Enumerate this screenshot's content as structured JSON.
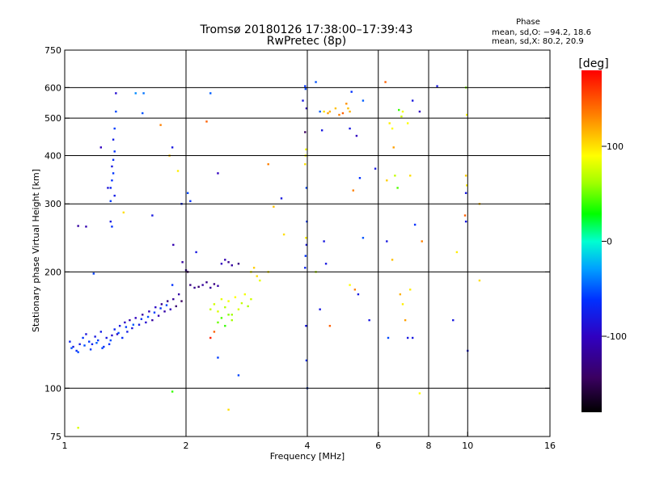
{
  "chart_data": {
    "type": "scatter",
    "title": "Tromsø 20180126 17:38:00–17:39:43",
    "subtitle": "RwPretec (8p)",
    "xlabel": "Frequency [MHz]",
    "ylabel": "Stationary phase Virtual Height [km]",
    "x_scale": "log",
    "y_scale": "log",
    "xlim": [
      1,
      16
    ],
    "ylim": [
      75,
      750
    ],
    "x_ticks": [
      1,
      2,
      4,
      6,
      8,
      10,
      16
    ],
    "y_ticks": [
      75,
      100,
      200,
      300,
      400,
      500,
      600,
      750
    ],
    "grid_x": [
      2,
      4,
      6,
      8,
      10
    ],
    "grid_y": [
      100,
      200,
      300,
      400,
      500,
      600
    ],
    "colorbar": {
      "label": "[deg]",
      "range": [
        -180,
        180
      ],
      "ticks": [
        100,
        0,
        -100
      ],
      "colormap": "rainbow (black → purple → blue → cyan → green → yellow → red)"
    },
    "phase_stats": {
      "heading": "Phase",
      "line1": "mean, sd,O: −94.2, 18.6",
      "line2": "mean, sd,X:  80.2, 20.9"
    },
    "series": [
      {
        "points": [
          [
            1.03,
            132,
            -105
          ],
          [
            1.05,
            128,
            -110
          ],
          [
            1.07,
            125,
            -102
          ],
          [
            1.09,
            130,
            -108
          ],
          [
            1.11,
            135,
            -100
          ],
          [
            1.13,
            138,
            -112
          ],
          [
            1.15,
            132,
            -98
          ],
          [
            1.17,
            130,
            -105
          ],
          [
            1.19,
            136,
            -110
          ],
          [
            1.21,
            133,
            -95
          ],
          [
            1.23,
            140,
            -108
          ],
          [
            1.25,
            128,
            -102
          ],
          [
            1.27,
            135,
            -110
          ],
          [
            1.29,
            130,
            -100
          ],
          [
            1.31,
            137,
            -115
          ],
          [
            1.33,
            142,
            -105
          ],
          [
            1.35,
            138,
            -120
          ],
          [
            1.37,
            145,
            -110
          ],
          [
            1.39,
            135,
            -102
          ],
          [
            1.41,
            148,
            -118
          ],
          [
            1.43,
            140,
            -108
          ],
          [
            1.45,
            150,
            -125
          ],
          [
            1.47,
            143,
            -112
          ],
          [
            1.5,
            152,
            -120
          ],
          [
            1.53,
            146,
            -110
          ],
          [
            1.56,
            155,
            -128
          ],
          [
            1.59,
            148,
            -115
          ],
          [
            1.62,
            158,
            -122
          ],
          [
            1.65,
            150,
            -130
          ],
          [
            1.68,
            162,
            -118
          ],
          [
            1.71,
            154,
            -125
          ],
          [
            1.74,
            165,
            -135
          ],
          [
            1.77,
            158,
            -128
          ],
          [
            1.8,
            168,
            -140
          ],
          [
            1.83,
            160,
            -120
          ],
          [
            1.86,
            170,
            -132
          ],
          [
            1.89,
            163,
            -145
          ],
          [
            1.92,
            175,
            -128
          ],
          [
            1.95,
            168,
            -150
          ],
          [
            1.04,
            127,
            -85
          ],
          [
            1.08,
            124,
            -90
          ],
          [
            1.12,
            129,
            -88
          ],
          [
            1.16,
            126,
            -95
          ],
          [
            1.2,
            131,
            -80
          ],
          [
            1.24,
            127,
            -92
          ],
          [
            1.3,
            133,
            -86
          ],
          [
            1.36,
            139,
            -90
          ],
          [
            1.42,
            144,
            -94
          ],
          [
            1.48,
            146,
            -82
          ],
          [
            1.55,
            151,
            -98
          ],
          [
            1.61,
            153,
            -88
          ],
          [
            1.67,
            157,
            -95
          ],
          [
            1.73,
            161,
            -100
          ],
          [
            1.79,
            164,
            -92
          ],
          [
            1.3,
            330,
            -105
          ],
          [
            1.31,
            345,
            -100
          ],
          [
            1.32,
            360,
            -98
          ],
          [
            1.31,
            375,
            -110
          ],
          [
            1.32,
            390,
            -102
          ],
          [
            1.33,
            410,
            -100
          ],
          [
            1.32,
            440,
            -108
          ],
          [
            1.33,
            470,
            -95
          ],
          [
            1.34,
            520,
            -90
          ],
          [
            1.34,
            580,
            -115
          ],
          [
            1.3,
            270,
            -110
          ],
          [
            1.31,
            262,
            -100
          ],
          [
            1.33,
            315,
            -108
          ],
          [
            1.28,
            330,
            -112
          ],
          [
            1.3,
            305,
            -95
          ],
          [
            1.23,
            420,
            -120
          ],
          [
            1.13,
            262,
            -125
          ],
          [
            1.5,
            580,
            -60
          ],
          [
            1.57,
            580,
            -70
          ],
          [
            1.56,
            515,
            -85
          ],
          [
            1.65,
            280,
            -110
          ],
          [
            1.73,
            480,
            140
          ],
          [
            1.82,
            400,
            120
          ],
          [
            1.91,
            365,
            105
          ],
          [
            1.85,
            420,
            -110
          ],
          [
            1.95,
            300,
            -105
          ],
          [
            2.02,
            320,
            -90
          ],
          [
            2.05,
            305,
            -100
          ],
          [
            2.4,
            360,
            -120
          ],
          [
            2.3,
            580,
            -80
          ],
          [
            2.25,
            490,
            150
          ],
          [
            1.86,
            235,
            -125
          ],
          [
            1.96,
            212,
            -130
          ],
          [
            2.02,
            200,
            -150
          ],
          [
            2.12,
            225,
            -110
          ],
          [
            2.05,
            185,
            -140
          ],
          [
            2.1,
            182,
            -135
          ],
          [
            2.15,
            183,
            -145
          ],
          [
            2.2,
            185,
            -130
          ],
          [
            2.25,
            188,
            -138
          ],
          [
            2.3,
            182,
            -132
          ],
          [
            2.35,
            186,
            -140
          ],
          [
            2.4,
            184,
            -128
          ],
          [
            2.45,
            210,
            -120
          ],
          [
            2.5,
            215,
            -125
          ],
          [
            2.55,
            212,
            -135
          ],
          [
            2.6,
            208,
            -130
          ],
          [
            2.7,
            210,
            -140
          ],
          [
            2.3,
            160,
            75
          ],
          [
            2.35,
            165,
            80
          ],
          [
            2.4,
            158,
            85
          ],
          [
            2.45,
            170,
            90
          ],
          [
            2.5,
            162,
            70
          ],
          [
            2.55,
            168,
            95
          ],
          [
            2.6,
            155,
            60
          ],
          [
            2.65,
            172,
            100
          ],
          [
            2.7,
            160,
            85
          ],
          [
            2.75,
            166,
            75
          ],
          [
            2.8,
            175,
            95
          ],
          [
            2.85,
            163,
            65
          ],
          [
            2.9,
            170,
            80
          ],
          [
            2.4,
            148,
            50
          ],
          [
            2.45,
            152,
            45
          ],
          [
            2.5,
            145,
            40
          ],
          [
            2.55,
            155,
            55
          ],
          [
            2.35,
            140,
            150
          ],
          [
            2.3,
            135,
            170
          ],
          [
            2.6,
            150,
            62
          ],
          [
            2.9,
            200,
            100
          ],
          [
            3.0,
            195,
            110
          ],
          [
            3.05,
            190,
            90
          ],
          [
            3.2,
            200,
            105
          ],
          [
            2.95,
            205,
            115
          ],
          [
            2.4,
            120,
            -95
          ],
          [
            2.7,
            108,
            -90
          ],
          [
            1.85,
            98,
            40
          ],
          [
            1.08,
            79,
            85
          ],
          [
            2.55,
            88,
            110
          ],
          [
            3.2,
            380,
            140
          ],
          [
            3.45,
            310,
            -110
          ],
          [
            3.5,
            250,
            110
          ],
          [
            3.3,
            295,
            120
          ],
          [
            3.95,
            605,
            -100
          ],
          [
            3.96,
            595,
            -90
          ],
          [
            3.9,
            555,
            -110
          ],
          [
            3.98,
            530,
            -120
          ],
          [
            3.95,
            460,
            -150
          ],
          [
            3.97,
            415,
            95
          ],
          [
            3.96,
            400,
            100
          ],
          [
            3.95,
            380,
            110
          ],
          [
            3.98,
            330,
            -90
          ],
          [
            3.99,
            270,
            -100
          ],
          [
            3.97,
            245,
            105
          ],
          [
            3.98,
            235,
            -110
          ],
          [
            3.96,
            220,
            -100
          ],
          [
            3.95,
            205,
            -105
          ],
          [
            3.97,
            145,
            -110
          ],
          [
            3.98,
            118,
            -100
          ],
          [
            4.0,
            100,
            -95
          ],
          [
            4.2,
            620,
            -85
          ],
          [
            4.3,
            520,
            -80
          ],
          [
            4.35,
            465,
            -110
          ],
          [
            4.4,
            520,
            110
          ],
          [
            4.5,
            515,
            130
          ],
          [
            4.55,
            520,
            125
          ],
          [
            4.7,
            530,
            120
          ],
          [
            4.8,
            510,
            140
          ],
          [
            4.9,
            515,
            150
          ],
          [
            5.0,
            545,
            135
          ],
          [
            5.05,
            530,
            120
          ],
          [
            5.1,
            520,
            125
          ],
          [
            5.15,
            585,
            -100
          ],
          [
            5.3,
            450,
            -120
          ],
          [
            5.1,
            470,
            -110
          ],
          [
            5.5,
            555,
            -80
          ],
          [
            5.4,
            350,
            -100
          ],
          [
            5.2,
            325,
            140
          ],
          [
            5.5,
            245,
            -85
          ],
          [
            4.4,
            240,
            -110
          ],
          [
            4.45,
            210,
            -110
          ],
          [
            4.3,
            160,
            -110
          ],
          [
            4.2,
            200,
            70
          ],
          [
            4.55,
            145,
            150
          ],
          [
            5.1,
            185,
            100
          ],
          [
            5.25,
            180,
            140
          ],
          [
            5.35,
            175,
            -110
          ],
          [
            5.7,
            150,
            -110
          ],
          [
            5.9,
            370,
            -110
          ],
          [
            6.25,
            620,
            150
          ],
          [
            6.3,
            345,
            115
          ],
          [
            6.4,
            485,
            105
          ],
          [
            6.5,
            470,
            100
          ],
          [
            6.55,
            420,
            130
          ],
          [
            6.6,
            355,
            75
          ],
          [
            6.7,
            330,
            45
          ],
          [
            6.75,
            525,
            40
          ],
          [
            6.85,
            505,
            80
          ],
          [
            6.9,
            520,
            95
          ],
          [
            7.1,
            485,
            100
          ],
          [
            7.3,
            555,
            -110
          ],
          [
            7.2,
            355,
            110
          ],
          [
            7.4,
            265,
            -100
          ],
          [
            7.6,
            520,
            -120
          ],
          [
            7.7,
            240,
            140
          ],
          [
            6.3,
            240,
            -110
          ],
          [
            6.5,
            215,
            120
          ],
          [
            6.8,
            175,
            125
          ],
          [
            6.9,
            165,
            105
          ],
          [
            7.0,
            150,
            130
          ],
          [
            7.1,
            135,
            -110
          ],
          [
            7.2,
            180,
            105
          ],
          [
            7.3,
            135,
            -110
          ],
          [
            6.35,
            135,
            -90
          ],
          [
            7.6,
            97,
            100
          ],
          [
            8.4,
            605,
            -110
          ],
          [
            9.2,
            150,
            -110
          ],
          [
            9.4,
            225,
            105
          ],
          [
            9.9,
            600,
            55
          ],
          [
            9.95,
            510,
            100
          ],
          [
            9.9,
            355,
            115
          ],
          [
            9.95,
            335,
            105
          ],
          [
            9.9,
            320,
            -110
          ],
          [
            9.85,
            280,
            150
          ],
          [
            9.9,
            270,
            -110
          ],
          [
            10.0,
            125,
            -110
          ],
          [
            10.7,
            300,
            120
          ],
          [
            10.7,
            190,
            110
          ],
          [
            1.18,
            198,
            -95
          ],
          [
            1.08,
            263,
            -130
          ],
          [
            1.4,
            285,
            110
          ],
          [
            1.85,
            185,
            -100
          ],
          [
            2.0,
            202,
            -130
          ]
        ]
      }
    ]
  }
}
